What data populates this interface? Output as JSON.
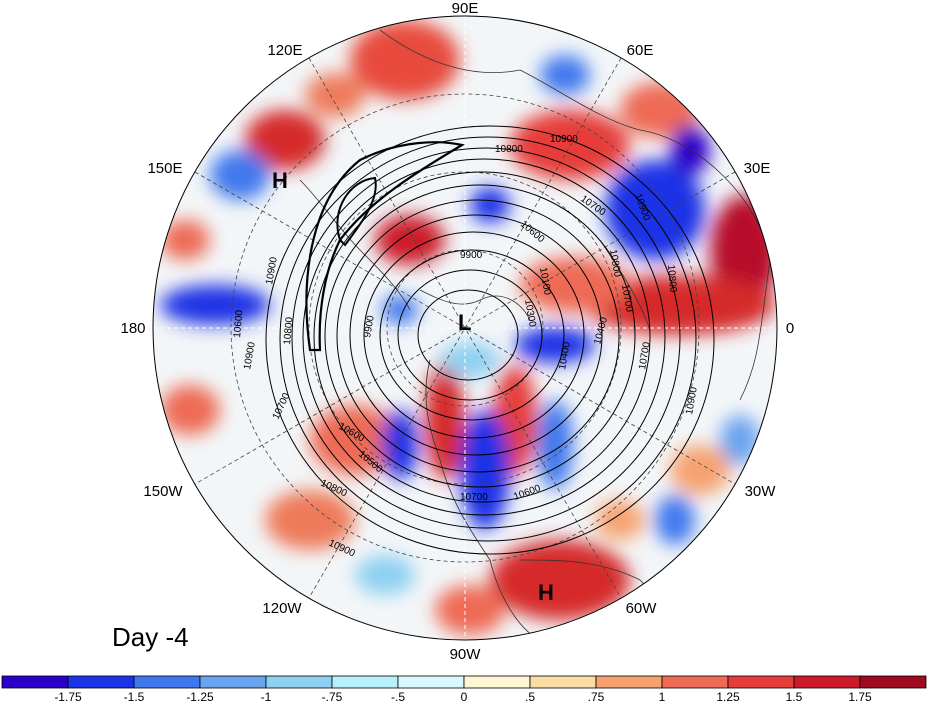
{
  "panel_label": "Day -4",
  "longitude_labels": [
    "90E",
    "60E",
    "30E",
    "0",
    "30W",
    "60W",
    "90W",
    "120W",
    "150W",
    "180",
    "150E",
    "120E"
  ],
  "pressure_centers": [
    "H",
    "H",
    "L"
  ],
  "contour_labels": [
    "10900",
    "10800",
    "10700",
    "10600",
    "10900",
    "10800",
    "10900",
    "10900",
    "10800",
    "10700",
    "10600",
    "10500",
    "10400",
    "10300",
    "10900",
    "10800",
    "10700",
    "10600",
    "10700",
    "10800",
    "10900",
    "10700",
    "10100",
    "10400",
    "10600",
    "9900",
    "9900"
  ],
  "colorbar": {
    "tick_labels": [
      "-1.75",
      "-1.5",
      "-1.25",
      "-1",
      "-.75",
      "-.5",
      "0",
      ".5",
      ".75",
      "1",
      "1.25",
      "1.5",
      "1.75"
    ],
    "colors": [
      "#2a00c8",
      "#1a33e6",
      "#3f78ee",
      "#6aa3ee",
      "#8ed0f2",
      "#b6f0fb",
      "#dcf8ff",
      "#fff6d4",
      "#fbdca4",
      "#f6a270",
      "#ee6a55",
      "#e63c3a",
      "#cc1a2a",
      "#a00a20"
    ]
  }
}
